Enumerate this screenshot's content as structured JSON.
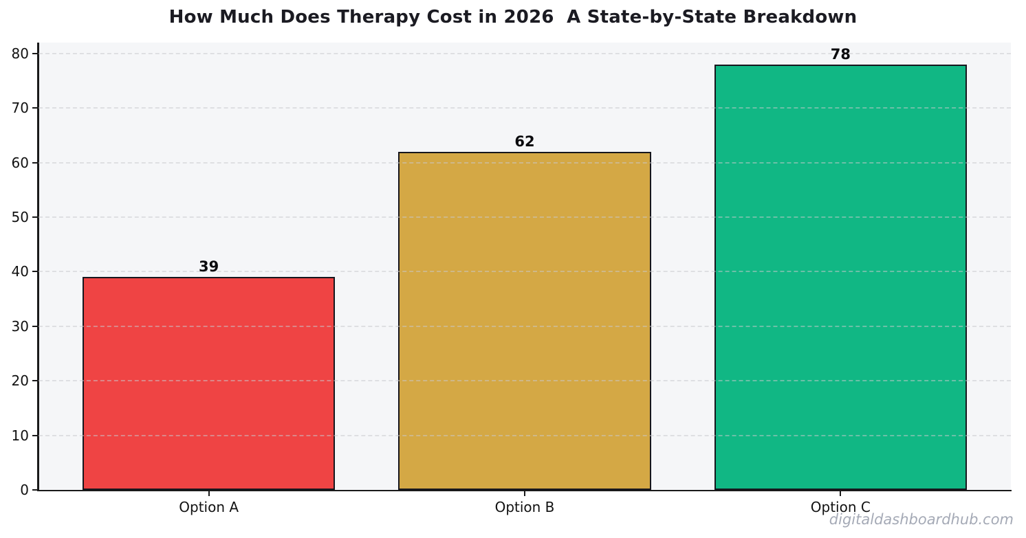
{
  "watermark": "digitaldashboardhub.com",
  "chart_data": {
    "type": "bar",
    "title": "How Much Does Therapy Cost in 2026  A State-by-State Breakdown",
    "categories": [
      "Option A",
      "Option B",
      "Option C"
    ],
    "values": [
      39,
      62,
      78
    ],
    "value_labels": [
      "39",
      "62",
      "78"
    ],
    "bar_colors": [
      "#ef4444",
      "#d4a845",
      "#11b784"
    ],
    "bar_edge_color": "#16161d",
    "xlabel": "",
    "ylabel": "",
    "ylim": [
      0,
      82
    ],
    "yticks": [
      0,
      10,
      20,
      30,
      40,
      50,
      60,
      70,
      80
    ],
    "grid": "horizontal-dashed",
    "legend": "none",
    "plot_background": "#f5f6f8",
    "watermark": "digitaldashboardhub.com"
  }
}
